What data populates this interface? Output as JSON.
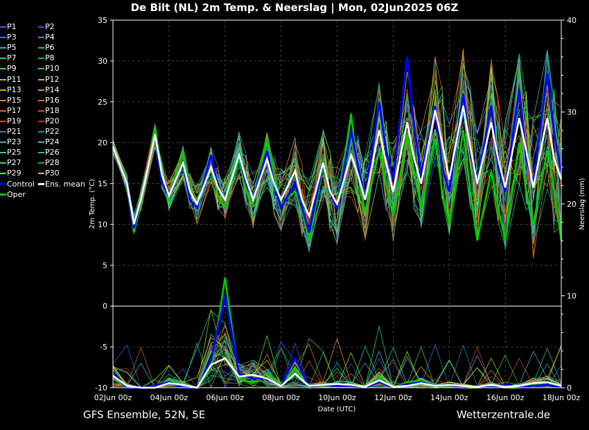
{
  "title": "De Bilt  (NL)  2m Temp. & Neerslag | Mon, 02Jun2025 06Z",
  "footer": {
    "left": "GFS Ensemble, 52N, 5E",
    "right": "Wetterzentrale.de"
  },
  "chart_data": {
    "type": "line",
    "title": "De Bilt  (NL)  2m Temp. & Neerslag | Mon, 02Jun2025 06Z",
    "xlabel": "Date (UTC)",
    "ylabel_left": "2m Temp. (°C)",
    "ylabel_right": "Neerslag (mm)",
    "ylim_left": [
      -10,
      35
    ],
    "ylim_right": [
      0,
      40
    ],
    "yticks_left": [
      "-10",
      "-5",
      "0",
      "5",
      "10",
      "15",
      "20",
      "25",
      "30",
      "35"
    ],
    "yticks_right": [
      "0",
      "10",
      "20",
      "30",
      "40"
    ],
    "xticks": [
      "02Jun 00z",
      "04Jun 00z",
      "06Jun 00z",
      "08Jun 00z",
      "10Jun 00z",
      "12Jun 00z",
      "14Jun 00z",
      "16Jun 00z",
      "18Jun 00z"
    ],
    "x_hours_range": [
      0,
      384
    ],
    "grid": true,
    "legend_position": "left",
    "legend": [
      {
        "name": "P1",
        "color": "#3a5fff"
      },
      {
        "name": "P2",
        "color": "#2f57e8"
      },
      {
        "name": "P3",
        "color": "#3c78d8"
      },
      {
        "name": "P4",
        "color": "#3399cc"
      },
      {
        "name": "P5",
        "color": "#2bb3c0"
      },
      {
        "name": "P6",
        "color": "#22c29a"
      },
      {
        "name": "P7",
        "color": "#26d07c"
      },
      {
        "name": "P8",
        "color": "#1fb85a"
      },
      {
        "name": "P9",
        "color": "#33cc55"
      },
      {
        "name": "P10",
        "color": "#44cc22"
      },
      {
        "name": "P11",
        "color": "#aacc33"
      },
      {
        "name": "P12",
        "color": "#ccbb33"
      },
      {
        "name": "P13",
        "color": "#ddaa22"
      },
      {
        "name": "P14",
        "color": "#dd9922"
      },
      {
        "name": "P15",
        "color": "#cc8833"
      },
      {
        "name": "P16",
        "color": "#cc7722"
      },
      {
        "name": "P17",
        "color": "#dd6622"
      },
      {
        "name": "P18",
        "color": "#cc5522"
      },
      {
        "name": "P19",
        "color": "#dd4422"
      },
      {
        "name": "P20",
        "color": "#cc3311"
      },
      {
        "name": "P21",
        "color": "#4477cc"
      },
      {
        "name": "P22",
        "color": "#3388bb"
      },
      {
        "name": "P23",
        "color": "#55aacc"
      },
      {
        "name": "P24",
        "color": "#44bbdd"
      },
      {
        "name": "P25",
        "color": "#33ccaa"
      },
      {
        "name": "P26",
        "color": "#22bb88"
      },
      {
        "name": "P27",
        "color": "#33dd66"
      },
      {
        "name": "P28",
        "color": "#22aa55"
      },
      {
        "name": "P29",
        "color": "#44ee33"
      },
      {
        "name": "P30",
        "color": "#cccc22"
      },
      {
        "name": "Control",
        "color": "#0000ff"
      },
      {
        "name": "Ens. mean",
        "color": "#ffffff"
      },
      {
        "name": "Oper",
        "color": "#00cc00"
      }
    ],
    "series": [
      {
        "name": "Ens. mean",
        "color": "#ffffff",
        "x_hours": [
          0,
          12,
          18,
          24,
          36,
          42,
          48,
          60,
          66,
          72,
          84,
          90,
          96,
          108,
          114,
          120,
          132,
          138,
          144,
          156,
          162,
          168,
          180,
          186,
          192,
          204,
          210,
          216,
          228,
          234,
          240,
          252,
          258,
          264,
          276,
          282,
          288,
          300,
          306,
          312,
          324,
          330,
          336,
          348,
          354,
          360,
          372,
          378,
          384
        ],
        "values": [
          19.5,
          15,
          10,
          13,
          21,
          16,
          13.5,
          17.5,
          14,
          12.5,
          17,
          14.5,
          13,
          18.5,
          15.5,
          13,
          18,
          15,
          13,
          16.5,
          13,
          11,
          17.5,
          14,
          12.5,
          18.5,
          16,
          13,
          21.5,
          17.5,
          14,
          22.5,
          18,
          15,
          24,
          20,
          15.5,
          24.5,
          19.5,
          15,
          22.5,
          18,
          14.5,
          23,
          19,
          14.5,
          23,
          18,
          15.5
        ]
      },
      {
        "name": "Control",
        "color": "#0000ff",
        "x_hours": [
          0,
          12,
          18,
          24,
          36,
          42,
          48,
          60,
          66,
          72,
          84,
          90,
          96,
          108,
          114,
          120,
          132,
          138,
          144,
          156,
          162,
          168,
          180,
          186,
          192,
          204,
          210,
          216,
          228,
          234,
          240,
          252,
          258,
          264,
          276,
          282,
          288,
          300,
          306,
          312,
          324,
          330,
          336,
          348,
          354,
          360,
          372,
          378,
          384
        ],
        "values": [
          19.5,
          15,
          9.5,
          13,
          21,
          15,
          13.5,
          17.5,
          13,
          12,
          18.5,
          14.5,
          13,
          18.5,
          15,
          13,
          19,
          15,
          12,
          15,
          12,
          9,
          17.5,
          14,
          12,
          21.5,
          17,
          13,
          25,
          19,
          15.5,
          30.5,
          22,
          16,
          24.5,
          17,
          14,
          26,
          19,
          15,
          24.5,
          17,
          14,
          26.5,
          18,
          15,
          28.5,
          21,
          16.5
        ]
      },
      {
        "name": "Oper",
        "color": "#00cc00",
        "x_hours": [
          0,
          12,
          18,
          24,
          36,
          42,
          48,
          60,
          66,
          72,
          84,
          90,
          96,
          108,
          114,
          120,
          132,
          138,
          144,
          156,
          162,
          168,
          180,
          186,
          192,
          204,
          210,
          216,
          228,
          234,
          240,
          252,
          258,
          264,
          276,
          282,
          288,
          300,
          306,
          312,
          324,
          330,
          336,
          348,
          354,
          360,
          372,
          378,
          384
        ],
        "values": [
          19.5,
          15,
          9,
          12.5,
          22,
          15.5,
          13,
          19,
          14,
          12.5,
          17,
          13.5,
          12,
          18,
          14,
          12.5,
          20.5,
          16,
          12.5,
          14,
          11.5,
          8,
          17,
          14,
          12,
          23.5,
          16,
          11.5,
          19,
          15,
          11,
          21,
          16.5,
          12,
          20.5,
          14,
          10,
          21.5,
          14,
          8,
          16.5,
          12,
          8,
          20,
          14,
          10,
          19,
          14,
          8
        ]
      }
    ],
    "precip_series": [
      {
        "name": "Ens. mean",
        "color": "#ffffff",
        "x_hours": [
          0,
          12,
          24,
          36,
          48,
          60,
          72,
          84,
          96,
          108,
          120,
          132,
          144,
          156,
          168,
          180,
          192,
          204,
          216,
          228,
          240,
          252,
          264,
          276,
          288,
          300,
          312,
          324,
          336,
          348,
          360,
          372,
          384
        ],
        "values": [
          1.3,
          0.2,
          0,
          0,
          0.5,
          0.3,
          0,
          2.5,
          3.2,
          1.2,
          1.4,
          1,
          0.2,
          1.5,
          0.2,
          0.3,
          0.4,
          0.3,
          0.1,
          0.8,
          0.1,
          0.2,
          0.5,
          0.2,
          0.3,
          0.2,
          0.1,
          0.3,
          0.1,
          0.2,
          0.5,
          0.6,
          0.2
        ]
      },
      {
        "name": "Control",
        "color": "#0000ff",
        "x_hours": [
          0,
          12,
          24,
          36,
          48,
          60,
          72,
          84,
          96,
          108,
          120,
          132,
          144,
          156,
          168,
          180,
          192,
          204,
          216,
          228,
          240,
          252,
          264,
          276,
          288,
          300,
          312,
          324,
          336,
          348,
          360,
          372,
          384
        ],
        "values": [
          1.5,
          0,
          0,
          0.2,
          0.6,
          0,
          0,
          3,
          10,
          1.5,
          1,
          1,
          0.2,
          3.2,
          0.1,
          0.3,
          0.2,
          0.2,
          0,
          0.6,
          0,
          0.4,
          0.6,
          0.2,
          0.3,
          0,
          0.2,
          0,
          0.3,
          0,
          0.2,
          0.3,
          0
        ]
      },
      {
        "name": "Oper",
        "color": "#00cc00",
        "x_hours": [
          0,
          12,
          24,
          36,
          48,
          60,
          72,
          84,
          96,
          108,
          120,
          132,
          144,
          156,
          168,
          180,
          192,
          204,
          216,
          228,
          240,
          252,
          264,
          276,
          288,
          300,
          312,
          324,
          336,
          348,
          360,
          372,
          384
        ],
        "values": [
          1.2,
          0,
          0,
          0,
          0.8,
          0.2,
          0,
          2,
          12,
          1,
          0.5,
          1.6,
          0.3,
          2,
          0,
          0.2,
          0.5,
          0.2,
          0,
          1,
          0,
          0.6,
          0.8,
          0,
          0.2,
          0,
          0,
          0.2,
          0,
          0,
          0.3,
          0.6,
          0
        ]
      }
    ]
  }
}
